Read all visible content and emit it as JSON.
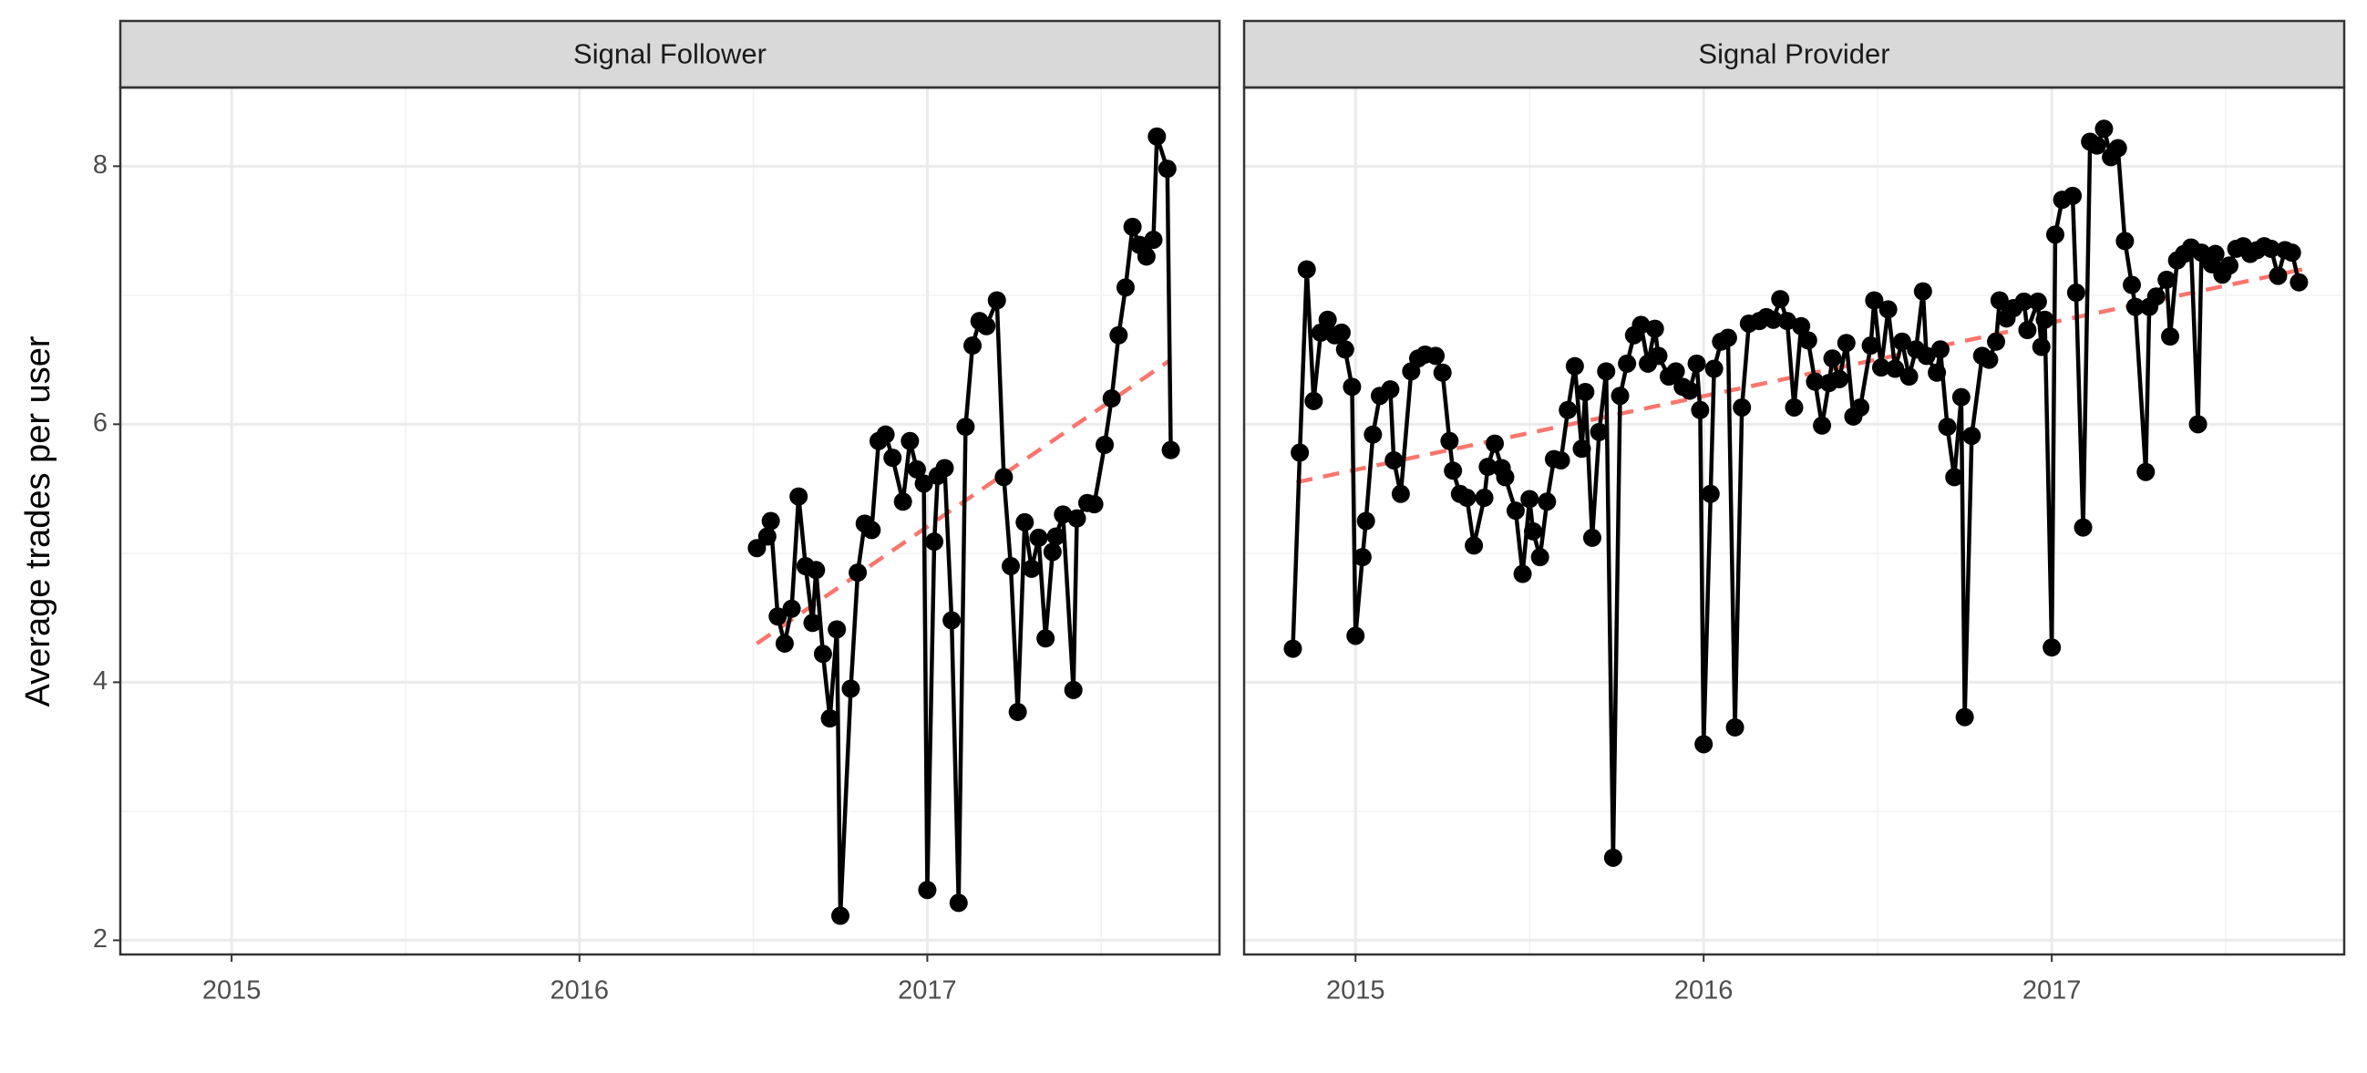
{
  "chart_data": [
    {
      "type": "line",
      "title": "Signal Follower",
      "ylabel": "Average trades per user",
      "xlim": [
        2014.68,
        2017.84
      ],
      "xticks": [
        2015,
        2016,
        2017
      ],
      "ylim": [
        1.89,
        8.61
      ],
      "yticks": [
        2,
        4,
        6,
        8
      ],
      "grid": true,
      "minor_grid": true,
      "color": "#000000",
      "x": [
        2016.51,
        2016.54,
        2016.55,
        2016.57,
        2016.59,
        2016.61,
        2016.63,
        2016.65,
        2016.67,
        2016.68,
        2016.7,
        2016.72,
        2016.74,
        2016.75,
        2016.78,
        2016.8,
        2016.82,
        2016.84,
        2016.86,
        2016.88,
        2016.9,
        2016.93,
        2016.95,
        2016.97,
        2016.99,
        2017.0,
        2017.02,
        2017.03,
        2017.05,
        2017.07,
        2017.09,
        2017.11,
        2017.13,
        2017.15,
        2017.17,
        2017.2,
        2017.22,
        2017.24,
        2017.26,
        2017.28,
        2017.3,
        2017.32,
        2017.34,
        2017.36,
        2017.37,
        2017.39,
        2017.42,
        2017.43,
        2017.46,
        2017.48,
        2017.51,
        2017.53,
        2017.55,
        2017.57,
        2017.59,
        2017.61,
        2017.63,
        2017.65,
        2017.66,
        2017.69,
        2017.7
      ],
      "values": [
        5.04,
        5.13,
        5.25,
        4.51,
        4.3,
        4.57,
        5.44,
        4.9,
        4.46,
        4.87,
        4.22,
        3.72,
        4.41,
        2.19,
        3.95,
        4.85,
        5.23,
        5.18,
        5.87,
        5.92,
        5.74,
        5.4,
        5.87,
        5.65,
        5.54,
        2.39,
        5.09,
        5.6,
        5.66,
        4.48,
        2.29,
        5.98,
        6.61,
        6.8,
        6.76,
        6.96,
        5.59,
        4.9,
        3.77,
        5.24,
        4.88,
        5.12,
        4.34,
        5.01,
        5.13,
        5.3,
        3.94,
        5.27,
        5.39,
        5.38,
        5.84,
        6.2,
        6.69,
        7.06,
        7.53,
        7.39,
        7.3,
        7.43,
        8.23,
        7.98,
        5.8
      ],
      "trend": {
        "color": "#f8766d",
        "x": [
          2016.51,
          2017.7
        ],
        "values": [
          4.3,
          6.5
        ]
      }
    },
    {
      "type": "line",
      "title": "Signal Provider",
      "xlim": [
        2014.68,
        2017.84
      ],
      "xticks": [
        2015,
        2016,
        2017
      ],
      "ylim": [
        1.89,
        8.61
      ],
      "yticks": [
        2,
        4,
        6,
        8
      ],
      "grid": true,
      "minor_grid": true,
      "color": "#000000",
      "x": [
        2014.82,
        2014.84,
        2014.86,
        2014.88,
        2014.9,
        2014.92,
        2014.94,
        2014.96,
        2014.97,
        2014.99,
        2015.0,
        2015.02,
        2015.03,
        2015.05,
        2015.07,
        2015.1,
        2015.11,
        2015.13,
        2015.16,
        2015.18,
        2015.2,
        2015.23,
        2015.25,
        2015.27,
        2015.28,
        2015.3,
        2015.32,
        2015.34,
        2015.37,
        2015.38,
        2015.4,
        2015.42,
        2015.43,
        2015.46,
        2015.48,
        2015.5,
        2015.51,
        2015.53,
        2015.55,
        2015.57,
        2015.59,
        2015.61,
        2015.63,
        2015.65,
        2015.66,
        2015.68,
        2015.7,
        2015.72,
        2015.74,
        2015.76,
        2015.78,
        2015.8,
        2015.82,
        2015.84,
        2015.86,
        2015.87,
        2015.9,
        2015.92,
        2015.94,
        2015.96,
        2015.98,
        2015.99,
        2016.0,
        2016.02,
        2016.03,
        2016.05,
        2016.07,
        2016.09,
        2016.11,
        2016.13,
        2016.16,
        2016.18,
        2016.2,
        2016.22,
        2016.24,
        2016.26,
        2016.28,
        2016.3,
        2016.32,
        2016.34,
        2016.36,
        2016.37,
        2016.39,
        2016.41,
        2016.43,
        2016.45,
        2016.48,
        2016.49,
        2016.51,
        2016.53,
        2016.55,
        2016.57,
        2016.59,
        2016.61,
        2016.63,
        2016.64,
        2016.67,
        2016.68,
        2016.7,
        2016.72,
        2016.74,
        2016.75,
        2016.77,
        2016.8,
        2016.82,
        2016.84,
        2016.85,
        2016.87,
        2016.89,
        2016.92,
        2016.93,
        2016.96,
        2016.97,
        2016.98,
        2017.0,
        2017.01,
        2017.03,
        2017.06,
        2017.07,
        2017.09,
        2017.11,
        2017.13,
        2017.15,
        2017.17,
        2017.19,
        2017.21,
        2017.23,
        2017.24,
        2017.27,
        2017.28,
        2017.3,
        2017.33,
        2017.34,
        2017.36,
        2017.38,
        2017.4,
        2017.42,
        2017.43,
        2017.46,
        2017.47,
        2017.49,
        2017.51,
        2017.53,
        2017.55,
        2017.57,
        2017.59,
        2017.61,
        2017.63,
        2017.65,
        2017.67,
        2017.69,
        2017.71
      ],
      "values": [
        4.26,
        5.78,
        7.2,
        6.18,
        6.71,
        6.81,
        6.69,
        6.71,
        6.58,
        6.29,
        4.36,
        4.97,
        5.25,
        5.92,
        6.22,
        6.27,
        5.72,
        5.46,
        6.41,
        6.51,
        6.54,
        6.53,
        6.4,
        5.87,
        5.64,
        5.46,
        5.43,
        5.06,
        5.43,
        5.67,
        5.85,
        5.66,
        5.59,
        5.33,
        4.84,
        5.42,
        5.17,
        4.97,
        5.4,
        5.73,
        5.72,
        6.11,
        6.45,
        5.81,
        6.25,
        5.12,
        5.94,
        6.41,
        2.64,
        6.22,
        6.47,
        6.69,
        6.77,
        6.47,
        6.74,
        6.53,
        6.37,
        6.41,
        6.29,
        6.26,
        6.47,
        6.11,
        3.52,
        5.46,
        6.43,
        6.64,
        6.67,
        3.65,
        6.13,
        6.78,
        6.8,
        6.83,
        6.81,
        6.97,
        6.8,
        6.13,
        6.76,
        6.65,
        6.33,
        5.99,
        6.32,
        6.51,
        6.35,
        6.63,
        6.06,
        6.13,
        6.61,
        6.96,
        6.44,
        6.89,
        6.43,
        6.64,
        6.37,
        6.58,
        7.03,
        6.53,
        6.4,
        6.58,
        5.98,
        5.59,
        6.21,
        3.73,
        5.91,
        6.53,
        6.5,
        6.64,
        6.96,
        6.82,
        6.9,
        6.95,
        6.73,
        6.95,
        6.6,
        6.81,
        4.27,
        7.47,
        7.74,
        7.77,
        7.02,
        5.2,
        8.19,
        8.16,
        8.29,
        8.07,
        8.14,
        7.42,
        7.08,
        6.91,
        5.63,
        6.91,
        6.99,
        7.12,
        6.68,
        7.27,
        7.32,
        7.37,
        6.0,
        7.33,
        7.24,
        7.32,
        7.16,
        7.23,
        7.36,
        7.38,
        7.32,
        7.35,
        7.38,
        7.36,
        7.15,
        7.35,
        7.33,
        7.1
      ],
      "trend": {
        "color": "#f8766d",
        "x": [
          2014.83,
          2017.72
        ],
        "values": [
          5.55,
          7.2
        ]
      }
    }
  ]
}
